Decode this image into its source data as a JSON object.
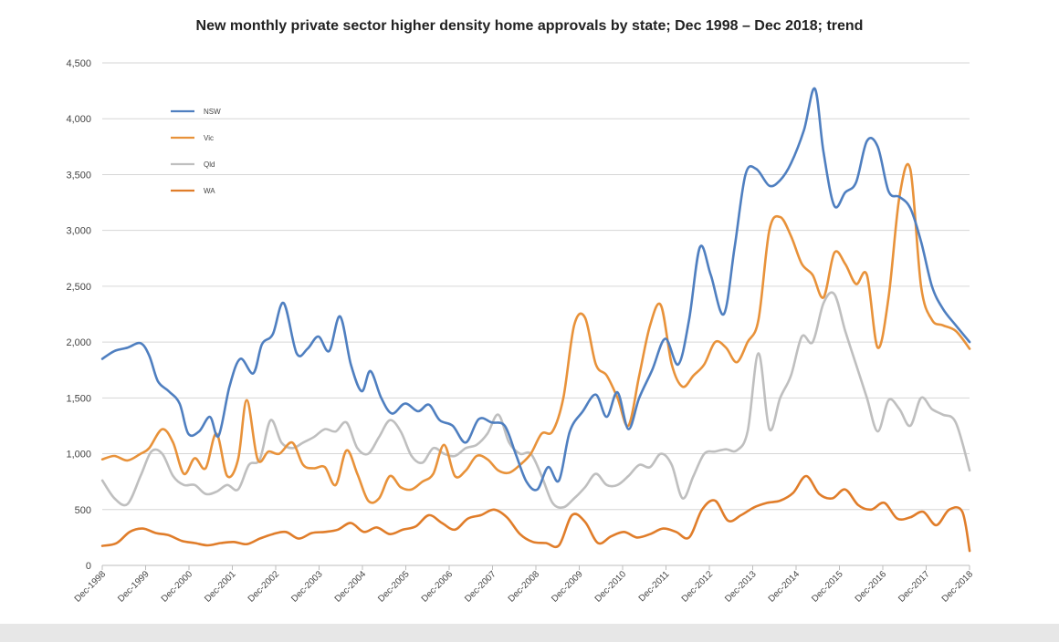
{
  "chart_data": {
    "type": "line",
    "title": "New monthly private sector higher density home approvals by state; Dec 1998 – Dec 2018; trend",
    "xlabel": "",
    "ylabel": "",
    "ylim": [
      0,
      4500
    ],
    "y_ticks": [
      "0",
      "500",
      "1,000",
      "1,500",
      "2,000",
      "2,500",
      "3,000",
      "3,500",
      "4,000",
      "4,500"
    ],
    "y_tick_values": [
      0,
      500,
      1000,
      1500,
      2000,
      2500,
      3000,
      3500,
      4000,
      4500
    ],
    "categories": [
      "Dec-1998",
      "Dec-1999",
      "Dec-2000",
      "Dec-2001",
      "Dec-2002",
      "Dec-2003",
      "Dec-2004",
      "Dec-2005",
      "Dec-2006",
      "Dec-2007",
      "Dec-2008",
      "Dec-2009",
      "Dec-2010",
      "Dec-2011",
      "Dec-2012",
      "Dec-2013",
      "Dec-2014",
      "Dec-2015",
      "Dec-2016",
      "Dec-2017",
      "Dec-2018"
    ],
    "x_year_start": 1998.917,
    "x_year_end": 2018.917,
    "grid": true,
    "legend_position": "top-left",
    "series": [
      {
        "name": "NSW",
        "color": "#4f7fc0",
        "x": [
          1998.92,
          1999.2,
          1999.5,
          1999.8,
          2000.0,
          2000.2,
          2000.45,
          2000.7,
          2000.9,
          2001.15,
          2001.4,
          2001.6,
          2001.85,
          2002.1,
          2002.4,
          2002.6,
          2002.85,
          2003.1,
          2003.4,
          2003.65,
          2003.9,
          2004.15,
          2004.4,
          2004.65,
          2004.9,
          2005.1,
          2005.35,
          2005.6,
          2005.9,
          2006.2,
          2006.45,
          2006.7,
          2007.0,
          2007.3,
          2007.6,
          2007.9,
          2008.2,
          2008.45,
          2008.7,
          2008.95,
          2009.2,
          2009.45,
          2009.7,
          2010.0,
          2010.3,
          2010.55,
          2010.8,
          2011.05,
          2011.3,
          2011.6,
          2011.9,
          2012.2,
          2012.45,
          2012.7,
          2012.95,
          2013.25,
          2013.5,
          2013.75,
          2014.0,
          2014.3,
          2014.55,
          2014.8,
          2015.1,
          2015.35,
          2015.55,
          2015.8,
          2016.05,
          2016.3,
          2016.55,
          2016.8,
          2017.05,
          2017.3,
          2017.55,
          2017.8,
          2018.05,
          2018.3,
          2018.6,
          2018.92
        ],
        "values": [
          1850,
          1920,
          1950,
          1990,
          1880,
          1650,
          1560,
          1450,
          1180,
          1200,
          1330,
          1160,
          1600,
          1850,
          1720,
          1980,
          2070,
          2350,
          1900,
          1940,
          2050,
          1920,
          2230,
          1800,
          1560,
          1740,
          1500,
          1360,
          1450,
          1380,
          1440,
          1300,
          1250,
          1100,
          1310,
          1280,
          1250,
          1000,
          750,
          680,
          880,
          760,
          1200,
          1380,
          1530,
          1330,
          1550,
          1220,
          1500,
          1750,
          2030,
          1800,
          2200,
          2850,
          2600,
          2250,
          2850,
          3500,
          3550,
          3400,
          3450,
          3600,
          3900,
          4270,
          3700,
          3220,
          3340,
          3430,
          3800,
          3750,
          3350,
          3300,
          3200,
          2900,
          2500,
          2300,
          2150,
          2000
        ]
      },
      {
        "name": "Vic",
        "color": "#e8923a",
        "x": [
          1998.92,
          1999.2,
          1999.5,
          1999.8,
          2000.0,
          2000.3,
          2000.55,
          2000.8,
          2001.05,
          2001.3,
          2001.55,
          2001.8,
          2002.05,
          2002.25,
          2002.5,
          2002.75,
          2003.0,
          2003.3,
          2003.55,
          2003.8,
          2004.05,
          2004.3,
          2004.55,
          2004.8,
          2005.05,
          2005.3,
          2005.55,
          2005.8,
          2006.05,
          2006.3,
          2006.55,
          2006.8,
          2007.05,
          2007.3,
          2007.55,
          2007.8,
          2008.05,
          2008.3,
          2008.55,
          2008.8,
          2009.05,
          2009.3,
          2009.55,
          2009.8,
          2010.05,
          2010.3,
          2010.55,
          2010.8,
          2011.05,
          2011.3,
          2011.55,
          2011.8,
          2012.05,
          2012.3,
          2012.55,
          2012.8,
          2013.05,
          2013.3,
          2013.55,
          2013.8,
          2014.05,
          2014.3,
          2014.55,
          2014.8,
          2015.05,
          2015.3,
          2015.55,
          2015.8,
          2016.05,
          2016.3,
          2016.55,
          2016.8,
          2017.05,
          2017.3,
          2017.55,
          2017.8,
          2018.05,
          2018.3,
          2018.6,
          2018.92
        ],
        "values": [
          950,
          980,
          940,
          1000,
          1050,
          1220,
          1100,
          820,
          960,
          870,
          1180,
          800,
          950,
          1480,
          950,
          1020,
          1000,
          1100,
          900,
          870,
          880,
          720,
          1030,
          820,
          580,
          600,
          800,
          700,
          680,
          750,
          820,
          1080,
          800,
          850,
          980,
          950,
          850,
          830,
          900,
          1000,
          1180,
          1200,
          1500,
          2150,
          2220,
          1800,
          1700,
          1500,
          1250,
          1700,
          2150,
          2330,
          1800,
          1600,
          1700,
          1800,
          2000,
          1950,
          1820,
          2000,
          2200,
          3000,
          3120,
          2950,
          2700,
          2600,
          2400,
          2800,
          2700,
          2520,
          2600,
          1950,
          2400,
          3300,
          3550,
          2500,
          2200,
          2150,
          2100,
          1940
        ]
      },
      {
        "name": "Qld",
        "color": "#bfbfbf",
        "x": [
          1998.92,
          1999.2,
          1999.5,
          1999.8,
          2000.05,
          2000.3,
          2000.55,
          2000.8,
          2001.05,
          2001.3,
          2001.55,
          2001.8,
          2002.05,
          2002.3,
          2002.55,
          2002.8,
          2003.05,
          2003.3,
          2003.55,
          2003.8,
          2004.05,
          2004.3,
          2004.55,
          2004.8,
          2005.05,
          2005.3,
          2005.55,
          2005.8,
          2006.05,
          2006.3,
          2006.55,
          2006.8,
          2007.05,
          2007.3,
          2007.55,
          2007.8,
          2008.05,
          2008.3,
          2008.55,
          2008.8,
          2009.05,
          2009.3,
          2009.55,
          2009.8,
          2010.05,
          2010.3,
          2010.55,
          2010.8,
          2011.05,
          2011.3,
          2011.55,
          2011.8,
          2012.05,
          2012.3,
          2012.55,
          2012.8,
          2013.05,
          2013.3,
          2013.55,
          2013.8,
          2014.05,
          2014.3,
          2014.55,
          2014.8,
          2015.05,
          2015.3,
          2015.55,
          2015.8,
          2016.05,
          2016.3,
          2016.55,
          2016.8,
          2017.05,
          2017.3,
          2017.55,
          2017.8,
          2018.05,
          2018.3,
          2018.6,
          2018.92
        ],
        "values": [
          760,
          600,
          550,
          800,
          1020,
          1000,
          800,
          720,
          720,
          640,
          660,
          720,
          680,
          900,
          950,
          1300,
          1100,
          1050,
          1100,
          1150,
          1220,
          1200,
          1280,
          1050,
          1000,
          1150,
          1300,
          1200,
          980,
          920,
          1050,
          1000,
          980,
          1050,
          1080,
          1180,
          1350,
          1100,
          1000,
          1000,
          800,
          560,
          520,
          600,
          700,
          820,
          720,
          720,
          800,
          900,
          880,
          1000,
          900,
          600,
          800,
          1000,
          1020,
          1040,
          1030,
          1200,
          1900,
          1220,
          1500,
          1700,
          2050,
          2000,
          2350,
          2430,
          2100,
          1800,
          1500,
          1200,
          1480,
          1400,
          1250,
          1500,
          1400,
          1350,
          1280,
          850
        ]
      },
      {
        "name": "WA",
        "color": "#e07d2a",
        "x": [
          1998.92,
          1999.25,
          1999.55,
          1999.85,
          2000.15,
          2000.45,
          2000.75,
          2001.05,
          2001.35,
          2001.65,
          2001.95,
          2002.25,
          2002.55,
          2002.85,
          2003.15,
          2003.45,
          2003.75,
          2004.05,
          2004.35,
          2004.65,
          2004.95,
          2005.25,
          2005.55,
          2005.85,
          2006.15,
          2006.45,
          2006.75,
          2007.05,
          2007.35,
          2007.65,
          2007.95,
          2008.25,
          2008.55,
          2008.85,
          2009.15,
          2009.45,
          2009.75,
          2010.05,
          2010.35,
          2010.65,
          2010.95,
          2011.25,
          2011.55,
          2011.85,
          2012.15,
          2012.45,
          2012.75,
          2013.05,
          2013.35,
          2013.65,
          2013.95,
          2014.25,
          2014.55,
          2014.85,
          2015.15,
          2015.45,
          2015.75,
          2016.05,
          2016.35,
          2016.65,
          2016.95,
          2017.25,
          2017.55,
          2017.85,
          2018.15,
          2018.45,
          2018.75,
          2018.92
        ],
        "values": [
          175,
          200,
          300,
          330,
          290,
          270,
          220,
          200,
          180,
          200,
          210,
          190,
          240,
          280,
          300,
          240,
          290,
          300,
          320,
          380,
          300,
          340,
          280,
          320,
          350,
          450,
          380,
          320,
          420,
          450,
          500,
          430,
          280,
          210,
          200,
          180,
          450,
          390,
          200,
          260,
          300,
          250,
          280,
          330,
          300,
          250,
          500,
          580,
          400,
          450,
          520,
          560,
          580,
          650,
          800,
          640,
          600,
          680,
          540,
          500,
          560,
          420,
          430,
          480,
          360,
          500,
          480,
          130
        ]
      }
    ]
  }
}
